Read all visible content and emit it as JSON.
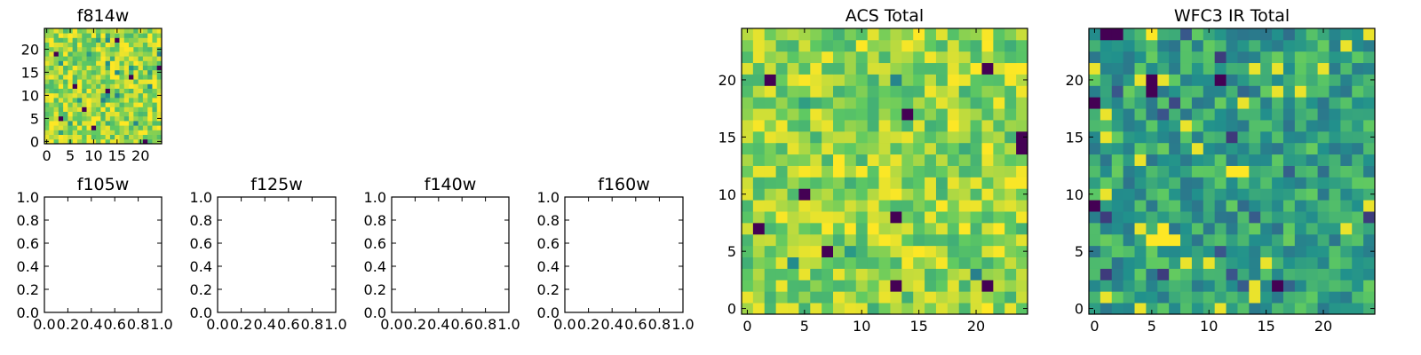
{
  "chart_data": [
    {
      "type": "heatmap",
      "title": "f814w",
      "colormap": "viridis",
      "grid_size": 25,
      "xticks": [
        0,
        5,
        10,
        15,
        20
      ],
      "yticks": [
        0,
        5,
        10,
        15,
        20
      ],
      "xlim": [
        0,
        25
      ],
      "ylim": [
        0,
        25
      ],
      "dominant_level": 0.85,
      "low_cells": [
        [
          21,
          0
        ],
        [
          3,
          5
        ],
        [
          8,
          7
        ],
        [
          13,
          11
        ],
        [
          18,
          14
        ],
        [
          24,
          16
        ],
        [
          2,
          19
        ],
        [
          15,
          22
        ],
        [
          10,
          3
        ],
        [
          6,
          12
        ]
      ]
    },
    {
      "type": "heatmap",
      "title": "f105w",
      "empty": true,
      "xticks": [
        "0.0",
        "0.2",
        "0.4",
        "0.6",
        "0.8",
        "1.0"
      ],
      "yticks": [
        "0.0",
        "0.2",
        "0.4",
        "0.6",
        "0.8",
        "1.0"
      ],
      "xlim": [
        0,
        1
      ],
      "ylim": [
        0,
        1
      ]
    },
    {
      "type": "heatmap",
      "title": "f125w",
      "empty": true,
      "xticks": [
        "0.0",
        "0.2",
        "0.4",
        "0.6",
        "0.8",
        "1.0"
      ],
      "yticks": [
        "0.0",
        "0.2",
        "0.4",
        "0.6",
        "0.8",
        "1.0"
      ],
      "xlim": [
        0,
        1
      ],
      "ylim": [
        0,
        1
      ]
    },
    {
      "type": "heatmap",
      "title": "f140w",
      "empty": true,
      "xticks": [
        "0.0",
        "0.2",
        "0.4",
        "0.6",
        "0.8",
        "1.0"
      ],
      "yticks": [
        "0.0",
        "0.2",
        "0.4",
        "0.6",
        "0.8",
        "1.0"
      ],
      "xlim": [
        0,
        1
      ],
      "ylim": [
        0,
        1
      ]
    },
    {
      "type": "heatmap",
      "title": "f160w",
      "empty": true,
      "xticks": [
        "0.0",
        "0.2",
        "0.4",
        "0.6",
        "0.8",
        "1.0"
      ],
      "yticks": [
        "0.0",
        "0.2",
        "0.4",
        "0.6",
        "0.8",
        "1.0"
      ],
      "xlim": [
        0,
        1
      ],
      "ylim": [
        0,
        1
      ]
    },
    {
      "type": "heatmap",
      "title": "ACS Total",
      "colormap": "viridis",
      "grid_size": 25,
      "xticks": [
        0,
        5,
        10,
        15,
        20
      ],
      "yticks": [
        0,
        5,
        10,
        15,
        20
      ],
      "xlim": [
        0,
        25
      ],
      "ylim": [
        0,
        25
      ],
      "dominant_level": 0.82,
      "low_cells": [
        [
          24,
          14
        ],
        [
          24,
          15
        ],
        [
          2,
          20
        ],
        [
          14,
          17
        ],
        [
          5,
          10
        ],
        [
          13,
          8
        ],
        [
          1,
          7
        ],
        [
          7,
          5
        ],
        [
          13,
          2
        ],
        [
          21,
          2
        ],
        [
          21,
          21
        ]
      ]
    },
    {
      "type": "heatmap",
      "title": "WFC3 IR Total",
      "colormap": "viridis",
      "grid_size": 25,
      "xticks": [
        0,
        5,
        10,
        15,
        20
      ],
      "yticks": [
        0,
        5,
        10,
        15,
        20
      ],
      "xlim": [
        0,
        25
      ],
      "ylim": [
        0,
        25
      ],
      "dominant_level": 0.58,
      "high_cells": [
        [
          5,
          6
        ],
        [
          6,
          6
        ],
        [
          7,
          6
        ],
        [
          6,
          7
        ],
        [
          12,
          12
        ],
        [
          13,
          12
        ],
        [
          5,
          24
        ]
      ],
      "low_cells": [
        [
          1,
          24
        ],
        [
          2,
          24
        ],
        [
          5,
          19
        ],
        [
          5,
          20
        ],
        [
          11,
          20
        ],
        [
          0,
          18
        ],
        [
          0,
          9
        ],
        [
          16,
          2
        ]
      ]
    }
  ]
}
